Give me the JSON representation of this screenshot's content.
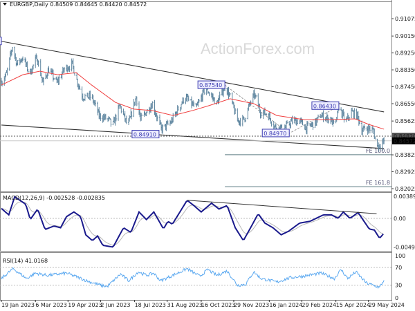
{
  "header": {
    "symbol": "EURGBP,Daily",
    "ohlc": "0.84509 0.84645 0.84420 0.84572"
  },
  "watermark": "ActionForex.com",
  "colors": {
    "bars": "#5f86a0",
    "ma": "#f04040",
    "macd": "#1a1a8c",
    "signal": "#b8b8b8",
    "rsi": "#5aa8f0",
    "trend": "#333333",
    "label_border": "#3a3ab0"
  },
  "chart_data": [
    {
      "type": "ohlc",
      "panel": "price",
      "ylim": [
        0.82025,
        0.91075
      ],
      "price_ticks": [
        "0.91075",
        "0.90150",
        "0.89250",
        "0.88350",
        "0.87450",
        "0.86550",
        "0.85625",
        "0.83825",
        "0.82925",
        "0.82025"
      ],
      "markers": {
        "dashed_level": "0.84820",
        "current_price": "0.84572"
      },
      "close": [
        [
          "2023-01-20",
          0.8776
        ],
        [
          "2023-01-26",
          0.8813
        ],
        [
          "2023-02-03",
          0.896
        ],
        [
          "2023-02-09",
          0.8865
        ],
        [
          "2023-02-17",
          0.8901
        ],
        [
          "2023-02-26",
          0.8813
        ],
        [
          "2023-03-08",
          0.8901
        ],
        [
          "2023-03-16",
          0.8765
        ],
        [
          "2023-03-24",
          0.8839
        ],
        [
          "2023-04-04",
          0.8765
        ],
        [
          "2023-04-14",
          0.8839
        ],
        [
          "2023-04-25",
          0.8865
        ],
        [
          "2023-04-30",
          0.8791
        ],
        [
          "2023-05-09",
          0.8692
        ],
        [
          "2023-05-21",
          0.8692
        ],
        [
          "2023-05-31",
          0.8592
        ],
        [
          "2023-06-13",
          0.857
        ],
        [
          "2023-06-18",
          0.8534
        ],
        [
          "2023-06-28",
          0.8644
        ],
        [
          "2023-07-09",
          0.8534
        ],
        [
          "2023-07-20",
          0.8692
        ],
        [
          "2023-07-26",
          0.857
        ],
        [
          "2023-08-11",
          0.8655
        ],
        [
          "2023-08-23",
          0.8519
        ],
        [
          "2023-09-05",
          0.8556
        ],
        [
          "2023-09-24",
          0.8692
        ],
        [
          "2023-10-09",
          0.8629
        ],
        [
          "2023-10-22",
          0.874
        ],
        [
          "2023-11-06",
          0.8655
        ],
        [
          "2023-11-17",
          0.875
        ],
        [
          "2023-11-24",
          0.8692
        ],
        [
          "2023-12-04",
          0.8563
        ],
        [
          "2023-12-13",
          0.857
        ],
        [
          "2023-12-22",
          0.8666
        ],
        [
          "2023-12-27",
          0.8703
        ],
        [
          "2024-01-04",
          0.8611
        ],
        [
          "2024-01-14",
          0.86
        ],
        [
          "2024-01-23",
          0.8534
        ],
        [
          "2024-02-04",
          0.8519
        ],
        [
          "2024-02-16",
          0.8563
        ],
        [
          "2024-02-26",
          0.8563
        ],
        [
          "2024-03-06",
          0.8526
        ],
        [
          "2024-03-19",
          0.8556
        ],
        [
          "2024-03-25",
          0.8592
        ],
        [
          "2024-04-07",
          0.8574
        ],
        [
          "2024-04-14",
          0.8534
        ],
        [
          "2024-04-19",
          0.864
        ],
        [
          "2024-04-28",
          0.8556
        ],
        [
          "2024-05-06",
          0.8611
        ],
        [
          "2024-05-14",
          0.8592
        ],
        [
          "2024-05-20",
          0.8515
        ],
        [
          "2024-05-29",
          0.8526
        ],
        [
          "2024-06-05",
          0.8508
        ],
        [
          "2024-06-09",
          0.8423
        ],
        [
          "2024-06-19",
          0.84572
        ]
      ],
      "moving_average": [
        [
          "2023-01-19",
          0.8754
        ],
        [
          "2023-02-17",
          0.8809
        ],
        [
          "2023-03-12",
          0.8828
        ],
        [
          "2023-04-05",
          0.8809
        ],
        [
          "2023-04-30",
          0.882
        ],
        [
          "2023-05-21",
          0.8754
        ],
        [
          "2023-06-22",
          0.8662
        ],
        [
          "2023-07-17",
          0.8626
        ],
        [
          "2023-08-11",
          0.8618
        ],
        [
          "2023-09-08",
          0.8592
        ],
        [
          "2023-10-04",
          0.8618
        ],
        [
          "2023-10-26",
          0.8644
        ],
        [
          "2023-11-24",
          0.8681
        ],
        [
          "2023-12-26",
          0.8655
        ],
        [
          "2024-01-26",
          0.8592
        ],
        [
          "2024-03-03",
          0.857
        ],
        [
          "2024-04-10",
          0.857
        ],
        [
          "2024-05-11",
          0.8574
        ],
        [
          "2024-05-29",
          0.8545
        ],
        [
          "2024-06-19",
          0.8519
        ]
      ],
      "trendlines": [
        {
          "from": [
            "2023-01-19",
            0.8987
          ],
          "to": [
            "2024-06-19",
            0.8611
          ]
        },
        {
          "from": [
            "2023-01-19",
            0.8541
          ],
          "to": [
            "2024-06-19",
            0.8416
          ]
        }
      ],
      "wave_path": [
        [
          "2023-11-17",
          0.8754
        ],
        [
          "2024-02-12",
          0.8497
        ],
        [
          "2024-04-19",
          0.8643
        ]
      ],
      "fib_levels": [
        {
          "label": "FE 100.0",
          "price": 0.8383,
          "from": "2023-11-17"
        },
        {
          "label": "FE 161.8",
          "price": 0.8213,
          "from": "2023-11-17"
        }
      ],
      "point_labels": [
        {
          "text": "70",
          "date": "2023-01-19",
          "price": 0.8987
        },
        {
          "text": "0.87540",
          "date": "2023-11-17",
          "price": 0.8754
        },
        {
          "text": "0.84910",
          "date": "2023-08-20",
          "price": 0.8491
        },
        {
          "text": "0.84970",
          "date": "2024-02-12",
          "price": 0.8497
        },
        {
          "text": "0.86430",
          "date": "2024-04-19",
          "price": 0.8643
        }
      ]
    },
    {
      "type": "line",
      "panel": "macd",
      "title": "MACD(12,26,9) -0.002528 -0.002835",
      "ticks": [
        "0.003897",
        "0.00",
        "-0.004927"
      ],
      "ylim": [
        -0.004927,
        0.003897
      ],
      "macd": [
        [
          "2023-01-19",
          0.0017
        ],
        [
          "2023-01-29",
          0.0006
        ],
        [
          "2023-02-06",
          0.0037
        ],
        [
          "2023-02-21",
          0.0024
        ],
        [
          "2023-02-27",
          -0.0002
        ],
        [
          "2023-03-09",
          0.0016
        ],
        [
          "2023-03-19",
          -0.0019
        ],
        [
          "2023-03-31",
          -0.0013
        ],
        [
          "2023-04-09",
          -0.0016
        ],
        [
          "2023-04-17",
          0.0003
        ],
        [
          "2023-04-27",
          0.0011
        ],
        [
          "2023-05-06",
          0.0003
        ],
        [
          "2023-05-13",
          -0.0028
        ],
        [
          "2023-05-22",
          -0.0038
        ],
        [
          "2023-05-29",
          -0.003
        ],
        [
          "2023-06-05",
          -0.0046
        ],
        [
          "2023-06-19",
          -0.0049
        ],
        [
          "2023-07-03",
          -0.0016
        ],
        [
          "2023-07-13",
          -0.0024
        ],
        [
          "2023-07-24",
          0.0011
        ],
        [
          "2023-08-03",
          -0.0002
        ],
        [
          "2023-08-13",
          0.0011
        ],
        [
          "2023-08-26",
          -0.0018
        ],
        [
          "2023-09-01",
          -0.0005
        ],
        [
          "2023-09-07",
          -0.001
        ],
        [
          "2023-09-27",
          0.0031
        ],
        [
          "2023-10-06",
          0.0022
        ],
        [
          "2023-10-16",
          0.0011
        ],
        [
          "2023-10-30",
          0.0026
        ],
        [
          "2023-11-09",
          0.0016
        ],
        [
          "2023-11-20",
          0.0022
        ],
        [
          "2023-12-01",
          -0.0016
        ],
        [
          "2023-12-12",
          -0.0038
        ],
        [
          "2023-12-23",
          -0.0013
        ],
        [
          "2024-01-01",
          0.0008
        ],
        [
          "2024-01-10",
          -0.0008
        ],
        [
          "2024-01-21",
          -0.0016
        ],
        [
          "2024-02-01",
          -0.0028
        ],
        [
          "2024-02-11",
          -0.0022
        ],
        [
          "2024-02-26",
          -0.0008
        ],
        [
          "2024-03-11",
          -0.0005
        ],
        [
          "2024-03-29",
          0.0006
        ],
        [
          "2024-04-09",
          0.0006
        ],
        [
          "2024-04-18",
          0.0
        ],
        [
          "2024-04-25",
          0.0011
        ],
        [
          "2024-05-04",
          0.0
        ],
        [
          "2024-05-15",
          0.001
        ],
        [
          "2024-05-30",
          -0.0018
        ],
        [
          "2024-06-06",
          -0.002
        ],
        [
          "2024-06-13",
          -0.0034
        ],
        [
          "2024-06-19",
          -0.002528
        ]
      ],
      "trendline": {
        "from": [
          "2023-09-27",
          0.0031
        ],
        "to": [
          "2024-06-09",
          0.0008
        ]
      }
    },
    {
      "type": "line",
      "panel": "rsi",
      "title": "RSI(14) 41.0168",
      "ticks": [
        "100",
        "70",
        "30",
        "0"
      ],
      "ylim": [
        0,
        100
      ],
      "levels": [
        70,
        30
      ],
      "rsi": [
        [
          "2023-01-19",
          45
        ],
        [
          "2023-02-04",
          67
        ],
        [
          "2023-02-22",
          45
        ],
        [
          "2023-03-06",
          57
        ],
        [
          "2023-03-22",
          52
        ],
        [
          "2023-04-17",
          57
        ],
        [
          "2023-05-07",
          45
        ],
        [
          "2023-05-14",
          40
        ],
        [
          "2023-06-02",
          30
        ],
        [
          "2023-06-11",
          27
        ],
        [
          "2023-06-29",
          55
        ],
        [
          "2023-07-10",
          40
        ],
        [
          "2023-07-23",
          60
        ],
        [
          "2023-08-03",
          52
        ],
        [
          "2023-08-13",
          57
        ],
        [
          "2023-08-22",
          40
        ],
        [
          "2023-09-05",
          50
        ],
        [
          "2023-09-27",
          67
        ],
        [
          "2023-10-14",
          50
        ],
        [
          "2023-10-25",
          65
        ],
        [
          "2023-11-06",
          52
        ],
        [
          "2023-11-20",
          62
        ],
        [
          "2023-12-04",
          30
        ],
        [
          "2023-12-15",
          32
        ],
        [
          "2023-12-26",
          60
        ],
        [
          "2024-01-05",
          45
        ],
        [
          "2024-01-26",
          37
        ],
        [
          "2024-02-14",
          47
        ],
        [
          "2024-02-29",
          50
        ],
        [
          "2024-03-26",
          57
        ],
        [
          "2024-04-13",
          45
        ],
        [
          "2024-04-22",
          65
        ],
        [
          "2024-05-01",
          45
        ],
        [
          "2024-05-12",
          60
        ],
        [
          "2024-05-26",
          35
        ],
        [
          "2024-06-13",
          25
        ],
        [
          "2024-06-19",
          41.0168
        ]
      ]
    }
  ],
  "x_axis": {
    "ticks": [
      [
        "2023-01-19",
        "19 Jan 2023"
      ],
      [
        "2023-03-06",
        "6 Mar 2023"
      ],
      [
        "2023-04-19",
        "19 Apr 2023"
      ],
      [
        "2023-06-02",
        "2 Jun 2023"
      ],
      [
        "2023-07-18",
        "18 Jul 2023"
      ],
      [
        "2023-08-31",
        "31 Aug 2023"
      ],
      [
        "2023-10-16",
        "16 Oct 2023"
      ],
      [
        "2023-11-29",
        "29 Nov 2023"
      ],
      [
        "2024-01-16",
        "16 Jan 2024"
      ],
      [
        "2024-02-29",
        "29 Feb 2024"
      ],
      [
        "2024-04-15",
        "15 Apr 2024"
      ],
      [
        "2024-05-29",
        "29 May 2024"
      ]
    ]
  }
}
